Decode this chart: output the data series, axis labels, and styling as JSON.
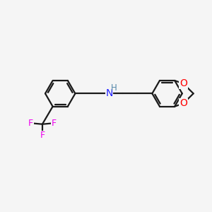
{
  "background_color": "#f5f5f5",
  "bond_color": "#1a1a1a",
  "atom_colors": {
    "N": "#2020ff",
    "F": "#ee00ee",
    "O": "#ff0000",
    "H": "#5588aa"
  },
  "figsize": [
    3.0,
    3.0
  ],
  "dpi": 100,
  "lw": 1.6,
  "ring_r": 0.72
}
